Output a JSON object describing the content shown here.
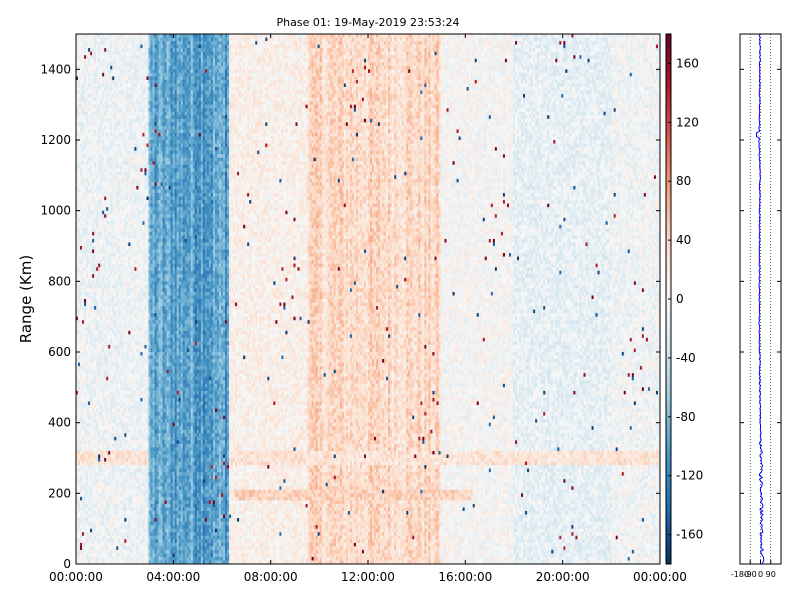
{
  "chart_data": [
    {
      "type": "heatmap",
      "title": "Phase 01: 19-May-2019 23:53:24",
      "ylabel": "Range (Km)",
      "xlabel": "",
      "x_ticks": [
        "00:00:00",
        "04:00:00",
        "08:00:00",
        "12:00:00",
        "16:00:00",
        "20:00:00",
        "00:00:00"
      ],
      "x_range_hours": [
        0,
        24
      ],
      "y_ticks": [
        0,
        200,
        400,
        600,
        800,
        1000,
        1200,
        1400
      ],
      "ylim": [
        0,
        1500
      ],
      "colormap": "RdBu_r",
      "clim": [
        -180,
        180
      ],
      "colorbar_ticks": [
        160,
        120,
        80,
        40,
        0,
        -40,
        -80,
        -120,
        -160
      ],
      "features": [
        {
          "hours": [
            3.0,
            6.3
          ],
          "range_km": [
            0,
            1500
          ],
          "phase_deg": -110
        },
        {
          "hours": [
            10.0,
            15.0
          ],
          "range_km": [
            0,
            1500
          ],
          "phase_deg": 45
        },
        {
          "hours": [
            6.5,
            16.3
          ],
          "range_km": [
            180,
            210
          ],
          "phase_deg": 40
        },
        {
          "hours": [
            0.0,
            24.0
          ],
          "range_km": [
            280,
            320
          ],
          "phase_deg": 25
        }
      ]
    },
    {
      "type": "line",
      "title": "",
      "x_ticks": [
        -180,
        -90,
        0,
        90
      ],
      "xlim": [
        -180,
        180
      ],
      "ylim": [
        0,
        1500
      ],
      "series_color": "#0000ff",
      "profile": [
        {
          "range_km": 0,
          "phase_deg": 15
        },
        {
          "range_km": 100,
          "phase_deg": 10
        },
        {
          "range_km": 200,
          "phase_deg": 8
        },
        {
          "range_km": 300,
          "phase_deg": 3
        },
        {
          "range_km": 400,
          "phase_deg": -2
        },
        {
          "range_km": 500,
          "phase_deg": -5
        },
        {
          "range_km": 600,
          "phase_deg": -8
        },
        {
          "range_km": 700,
          "phase_deg": -10
        },
        {
          "range_km": 800,
          "phase_deg": -8
        },
        {
          "range_km": 900,
          "phase_deg": -10
        },
        {
          "range_km": 1000,
          "phase_deg": -8
        },
        {
          "range_km": 1100,
          "phase_deg": -5
        },
        {
          "range_km": 1200,
          "phase_deg": -12
        },
        {
          "range_km": 1300,
          "phase_deg": -8
        },
        {
          "range_km": 1400,
          "phase_deg": -5
        },
        {
          "range_km": 1500,
          "phase_deg": -6
        }
      ]
    }
  ]
}
